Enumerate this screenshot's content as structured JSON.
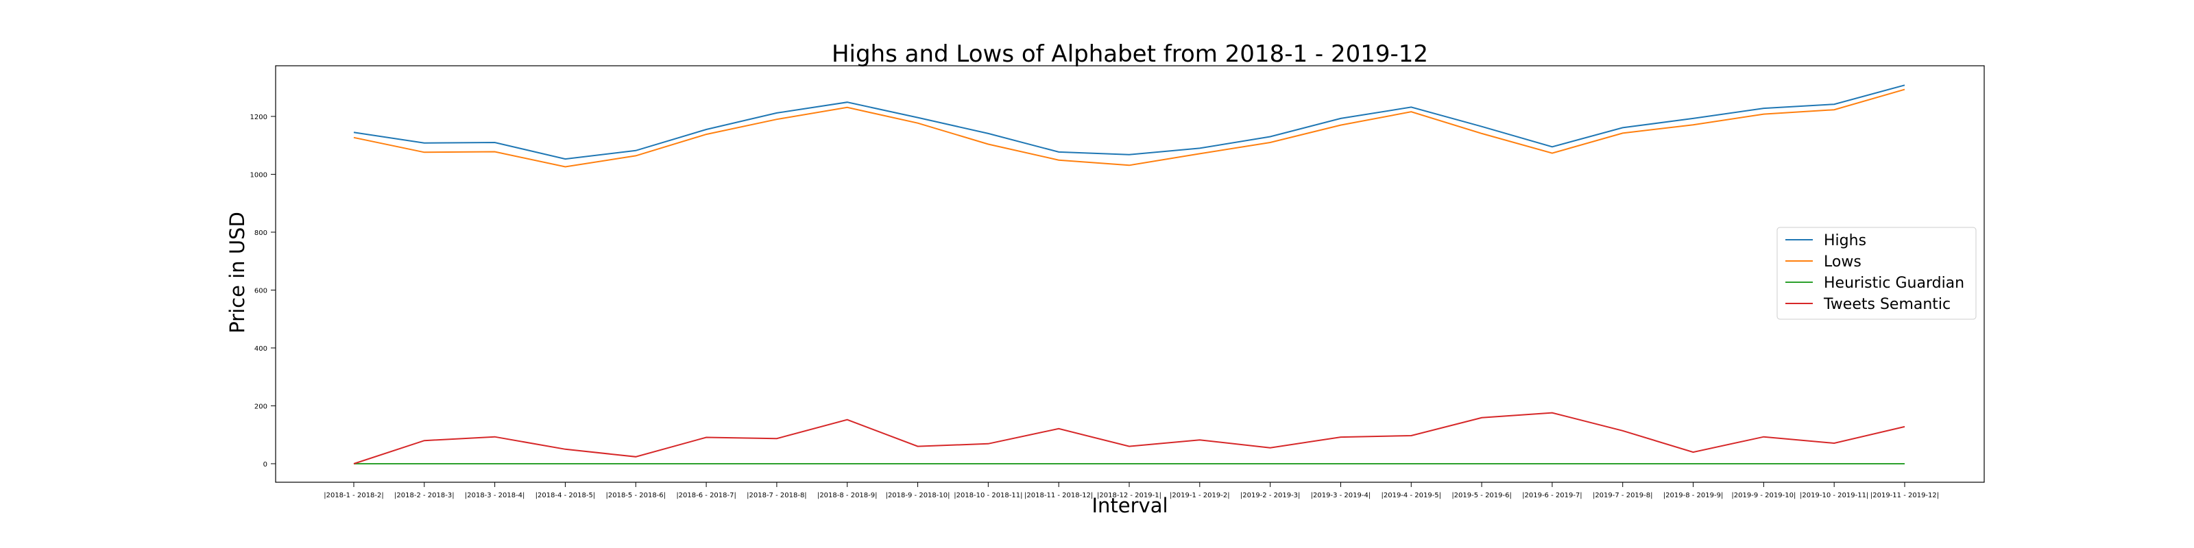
{
  "chart_data": {
    "type": "line",
    "title": "Highs and Lows of Alphabet from 2018-1 - 2019-12",
    "xlabel": "Interval",
    "ylabel": "Price in USD",
    "categories": [
      "|2018-1 - 2018-2|",
      "|2018-2 - 2018-3|",
      "|2018-3 - 2018-4|",
      "|2018-4 - 2018-5|",
      "|2018-5 - 2018-6|",
      "|2018-6 - 2018-7|",
      "|2018-7 - 2018-8|",
      "|2018-8 - 2018-9|",
      "|2018-9 - 2018-10|",
      "|2018-10 - 2018-11|",
      "|2018-11 - 2018-12|",
      "|2018-12 - 2019-1|",
      "|2019-1 - 2019-2|",
      "|2019-2 - 2019-3|",
      "|2019-3 - 2019-4|",
      "|2019-4 - 2019-5|",
      "|2019-5 - 2019-6|",
      "|2019-6 - 2019-7|",
      "|2019-7 - 2019-8|",
      "|2019-8 - 2019-9|",
      "|2019-9 - 2019-10|",
      "|2019-10 - 2019-11|",
      "|2019-11 - 2019-12|"
    ],
    "series": [
      {
        "name": "Highs",
        "color": "#1f77b4",
        "values": [
          1145,
          1108,
          1110,
          1053,
          1082,
          1155,
          1212,
          1249,
          1196,
          1141,
          1077,
          1068,
          1090,
          1130,
          1193,
          1232,
          1165,
          1095,
          1161,
          1193,
          1228,
          1242,
          1308
        ]
      },
      {
        "name": "Lows",
        "color": "#ff7f0e",
        "values": [
          1127,
          1076,
          1078,
          1026,
          1064,
          1138,
          1190,
          1231,
          1177,
          1104,
          1049,
          1031,
          1071,
          1110,
          1170,
          1216,
          1141,
          1073,
          1142,
          1171,
          1208,
          1223,
          1293
        ]
      },
      {
        "name": "Heuristic Guardian",
        "color": "#2ca02c",
        "values": [
          0,
          0,
          0,
          0,
          0,
          0,
          0,
          0,
          0,
          0,
          0,
          0,
          0,
          0,
          0,
          0,
          0,
          0,
          0,
          0,
          0,
          0,
          0
        ]
      },
      {
        "name": "Tweets Semantic",
        "color": "#d62728",
        "values": [
          0,
          80,
          93,
          50,
          24,
          91,
          87,
          152,
          60,
          69,
          121,
          60,
          82,
          55,
          92,
          97,
          159,
          176,
          114,
          40,
          93,
          71,
          128
        ]
      }
    ],
    "yticks": [
      0,
      200,
      400,
      600,
      800,
      1000,
      1200
    ],
    "ylim": [
      -64,
      1375
    ],
    "legend": "center-right",
    "grid": false
  }
}
